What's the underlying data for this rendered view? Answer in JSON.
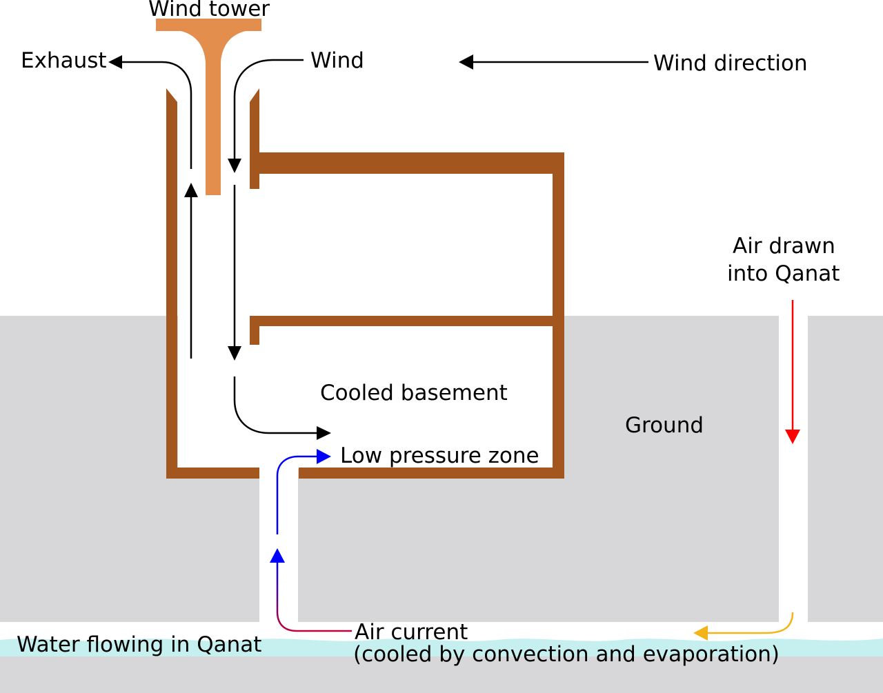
{
  "labels": {
    "wind_tower": "Wind tower",
    "exhaust": "Exhaust",
    "wind": "Wind",
    "wind_direction": "Wind direction",
    "air_drawn_line1": "Air drawn",
    "air_drawn_line2": "into Qanat",
    "cooled_basement": "Cooled basement",
    "ground": "Ground",
    "low_pressure_zone": "Low pressure zone",
    "water_flowing": "Water flowing in Qanat",
    "air_current_line1": "Air current",
    "air_current_line2": "(cooled by convection and evaporation)"
  },
  "colors": {
    "ground": "#d7d6d9",
    "building_wall": "#a3561e",
    "tower": "#e48e4d",
    "water": "#c6f0f0",
    "arrow": "#000000",
    "cool_air": "#0000ff",
    "qanat_intake_air": "#ff0000",
    "warm_air": "#f2b418"
  }
}
